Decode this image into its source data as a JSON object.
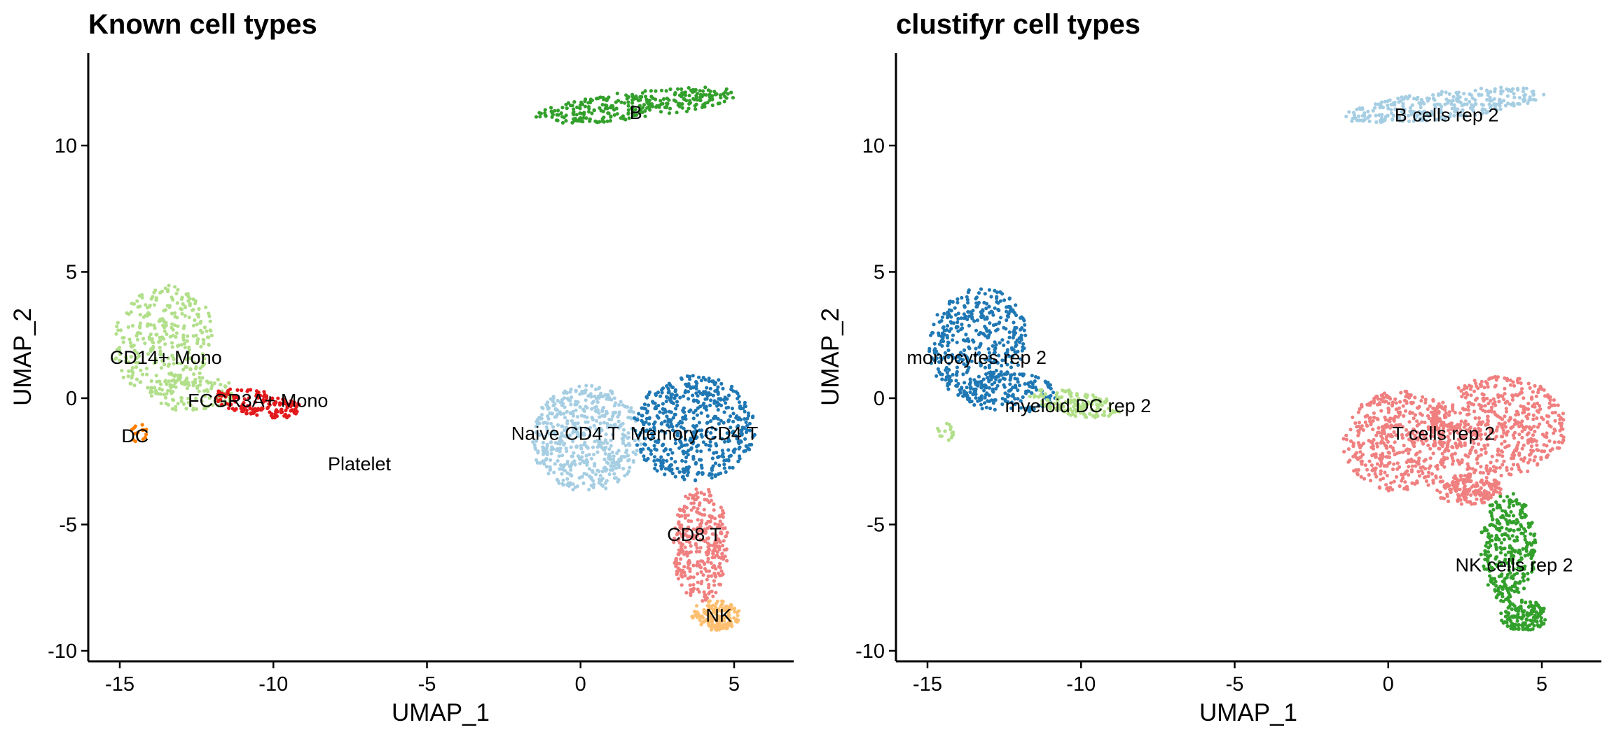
{
  "chart_data": [
    {
      "type": "scatter",
      "title": "Known cell types",
      "xlabel": "UMAP_1",
      "ylabel": "UMAP_2",
      "xlim": [
        -16.5,
        7
      ],
      "ylim": [
        -10.5,
        13.5
      ],
      "xticks": [
        -15,
        -10,
        -5,
        0,
        5
      ],
      "yticks": [
        -10,
        -5,
        0,
        5,
        10
      ],
      "xtick_labels": [
        "-15",
        "-10",
        "-5",
        "0",
        "5"
      ],
      "ytick_labels": [
        "-10",
        "-5",
        "0",
        "5",
        "10"
      ],
      "grid": false,
      "legend": "none",
      "clusters": [
        {
          "label": "B",
          "label_x": 1.8,
          "label_y": 11.3,
          "color": "#33a02c",
          "n": 300,
          "regions": [
            {
              "cx": 1.8,
              "cy": 11.6,
              "rx": 3.3,
              "ry": 0.55,
              "rot": 8,
              "w": 1
            }
          ]
        },
        {
          "label": "CD14+ Mono",
          "label_x": -13.5,
          "label_y": 1.6,
          "color": "#b2df8a",
          "n": 420,
          "regions": [
            {
              "cx": -13.6,
              "cy": 2.3,
              "rx": 1.6,
              "ry": 2.2,
              "rot": -10,
              "w": 0.75
            },
            {
              "cx": -12.6,
              "cy": 0.2,
              "rx": 1.4,
              "ry": 0.8,
              "rot": 0,
              "w": 0.25
            }
          ]
        },
        {
          "label": "FCGR3A+ Mono",
          "label_x": -10.5,
          "label_y": -0.1,
          "color": "#e31a1c",
          "n": 160,
          "regions": [
            {
              "cx": -10.5,
              "cy": -0.2,
              "rx": 1.5,
              "ry": 0.5,
              "rot": -12,
              "w": 1
            }
          ]
        },
        {
          "label": "DC",
          "label_x": -14.5,
          "label_y": -1.5,
          "color": "#ff7f00",
          "n": 14,
          "regions": [
            {
              "cx": -14.4,
              "cy": -1.4,
              "rx": 0.3,
              "ry": 0.4,
              "rot": 0,
              "w": 1
            }
          ]
        },
        {
          "label": "Platelet",
          "label_x": -7.2,
          "label_y": -2.6,
          "color": "#6a3d9a",
          "n": 0,
          "regions": []
        },
        {
          "label": "Naive CD4 T",
          "label_x": -0.5,
          "label_y": -1.4,
          "color": "#a6cee3",
          "n": 520,
          "regions": [
            {
              "cx": 0.2,
              "cy": -1.6,
              "rx": 1.8,
              "ry": 2.1,
              "rot": 0,
              "w": 1
            }
          ]
        },
        {
          "label": "Memory CD4 T",
          "label_x": 3.7,
          "label_y": -1.4,
          "color": "#1f78b4",
          "n": 520,
          "regions": [
            {
              "cx": 3.7,
              "cy": -1.2,
              "rx": 2.0,
              "ry": 2.1,
              "rot": 0,
              "w": 1
            }
          ]
        },
        {
          "label": "CD8 T",
          "label_x": 3.7,
          "label_y": -5.4,
          "color": "#f08080",
          "n": 330,
          "regions": [
            {
              "cx": 3.9,
              "cy": -5.8,
              "rx": 0.9,
              "ry": 2.3,
              "rot": 0,
              "w": 1
            }
          ]
        },
        {
          "label": "NK",
          "label_x": 4.5,
          "label_y": -8.6,
          "color": "#fdbf6f",
          "n": 150,
          "regions": [
            {
              "cx": 4.4,
              "cy": -8.6,
              "rx": 0.8,
              "ry": 0.6,
              "rot": 0,
              "w": 1
            }
          ]
        }
      ]
    },
    {
      "type": "scatter",
      "title": "clustifyr cell types",
      "xlabel": "UMAP_1",
      "ylabel": "UMAP_2",
      "xlim": [
        -16.5,
        7
      ],
      "ylim": [
        -10.5,
        13.5
      ],
      "xticks": [
        -15,
        -10,
        -5,
        0,
        5
      ],
      "yticks": [
        -10,
        -5,
        0,
        5,
        10
      ],
      "xtick_labels": [
        "-15",
        "-10",
        "-5",
        "0",
        "5"
      ],
      "ytick_labels": [
        "-10",
        "-5",
        "0",
        "5",
        "10"
      ],
      "grid": false,
      "legend": "none",
      "clusters": [
        {
          "label": "B cells rep 2",
          "label_x": 1.9,
          "label_y": 11.2,
          "color": "#a6cee3",
          "n": 300,
          "regions": [
            {
              "cx": 1.8,
              "cy": 11.6,
              "rx": 3.3,
              "ry": 0.55,
              "rot": 8,
              "w": 1
            }
          ]
        },
        {
          "label": "monocytes rep 2",
          "label_x": -13.4,
          "label_y": 1.6,
          "color": "#1f78b4",
          "n": 560,
          "regions": [
            {
              "cx": -13.4,
              "cy": 2.2,
              "rx": 1.6,
              "ry": 2.2,
              "rot": -10,
              "w": 0.7
            },
            {
              "cx": -12.3,
              "cy": 0.2,
              "rx": 1.5,
              "ry": 0.8,
              "rot": 0,
              "w": 0.3
            }
          ]
        },
        {
          "label": "myeloid DC rep 2",
          "label_x": -10.1,
          "label_y": -0.3,
          "color": "#b2df8a",
          "n": 170,
          "regions": [
            {
              "cx": -10.2,
              "cy": -0.2,
              "rx": 1.5,
              "ry": 0.5,
              "rot": -12,
              "w": 0.9
            },
            {
              "cx": -14.4,
              "cy": -1.3,
              "rx": 0.3,
              "ry": 0.4,
              "rot": 0,
              "w": 0.1
            }
          ]
        },
        {
          "label": "T cells rep 2",
          "label_x": 1.8,
          "label_y": -1.4,
          "color": "#f08080",
          "n": 1200,
          "regions": [
            {
              "cx": 0.4,
              "cy": -1.7,
              "rx": 1.9,
              "ry": 2.0,
              "rot": 0,
              "w": 0.4
            },
            {
              "cx": 3.6,
              "cy": -1.1,
              "rx": 2.2,
              "ry": 2.0,
              "rot": 0,
              "w": 0.45
            },
            {
              "cx": 2.6,
              "cy": -3.6,
              "rx": 1.1,
              "ry": 0.6,
              "rot": 0,
              "w": 0.15
            }
          ]
        },
        {
          "label": "NK cells rep 2",
          "label_x": 4.1,
          "label_y": -6.6,
          "color": "#33a02c",
          "n": 470,
          "regions": [
            {
              "cx": 3.9,
              "cy": -5.9,
              "rx": 0.9,
              "ry": 2.2,
              "rot": 0,
              "w": 0.7
            },
            {
              "cx": 4.4,
              "cy": -8.6,
              "rx": 0.8,
              "ry": 0.6,
              "rot": 0,
              "w": 0.3
            }
          ]
        }
      ]
    }
  ]
}
